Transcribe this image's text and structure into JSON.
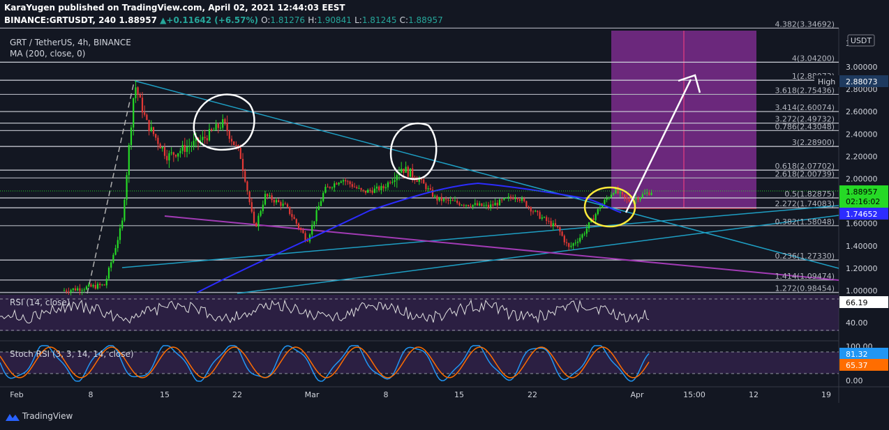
{
  "header": {
    "line1": "KaraYugen published on TradingView.com, April 02, 2021 12:44:03 EEST",
    "symbol": "BINANCE:GRTUSDT, 240",
    "price": "1.88957",
    "change": "+0.11642 (+6.57%)",
    "o": "1.81276",
    "h": "1.90841",
    "l": "1.81245",
    "c": "1.88957"
  },
  "legend": {
    "pair": "GRT / TetherUS, 4h, BINANCE",
    "ma": "MA (200, close, 0)",
    "rsi": "RSI (14, close)",
    "stoch": "Stoch RSI (3, 3, 14, 14, close)"
  },
  "currency_badge": "USDT",
  "high_label": "High",
  "high_value": "2.88073",
  "price_tag": "1.88957",
  "countdown": "02:16:02",
  "ma_tag": "1.74652",
  "rsi_tag": "66.19",
  "stoch_k_tag": "81.32",
  "stoch_d_tag": "65.37",
  "branding": "TradingView",
  "colors": {
    "background": "#131722",
    "up": "#26d926",
    "down": "#e53935",
    "ma": "#2c2cff",
    "trend_cyan": "#1e9fc4",
    "trend_purple": "#a23bb5",
    "target_box": "#7b2b8c",
    "highlight_yellow": "#ffeb3b",
    "annotation_white": "#ffffff"
  },
  "chart_data": {
    "type": "candlestick",
    "timeframe": "4h",
    "price_ticks": [
      "3.00000",
      "2.80000",
      "2.60000",
      "2.40000",
      "2.20000",
      "2.00000",
      "1.80000",
      "1.60000",
      "1.40000",
      "1.20000",
      "1.00000"
    ],
    "price_ticks_partial": [
      "3"
    ],
    "ylim": [
      0.98,
      3.44
    ],
    "x_ticks": [
      "Feb",
      "8",
      "15",
      "22",
      "Mar",
      "8",
      "15",
      "22",
      "Apr",
      "15:00",
      "12",
      "19"
    ],
    "fib_levels": [
      {
        "label": "4.382(3.34692)",
        "value": 3.34692
      },
      {
        "label": "4(3.04200)",
        "value": 3.042
      },
      {
        "label": "1(2.88073)",
        "value": 2.88073
      },
      {
        "label": "3.618(2.75436)",
        "value": 2.75436
      },
      {
        "label": "3.414(2.60074)",
        "value": 2.60074
      },
      {
        "label": "3.272(2.49732)",
        "value": 2.49732
      },
      {
        "label": "0.786(2.43048)",
        "value": 2.43048
      },
      {
        "label": "3(2.28900)",
        "value": 2.289
      },
      {
        "label": "0.618(2.07702)",
        "value": 2.07702
      },
      {
        "label": "2.618(2.00739)",
        "value": 2.00739
      },
      {
        "label": "0.5(1.82875)",
        "value": 1.82875
      },
      {
        "label": "2.272(1.74083)",
        "value": 1.74083
      },
      {
        "label": "0.382(1.58048)",
        "value": 1.58048
      },
      {
        "label": "0.236(1.27330)",
        "value": 1.2733
      },
      {
        "label": "1.414(1.09474)",
        "value": 1.09474
      },
      {
        "label": "1.272(0.98454)",
        "value": 0.98454
      }
    ],
    "rsi": {
      "ticks": [
        "40.00"
      ],
      "last": 66.19
    },
    "stoch_rsi": {
      "ticks": [
        "100.00",
        "0.00"
      ],
      "k_last": 81.32,
      "d_last": 65.37
    },
    "last_price": 1.88957,
    "ma200_last": 1.74652,
    "high": 2.88073
  }
}
